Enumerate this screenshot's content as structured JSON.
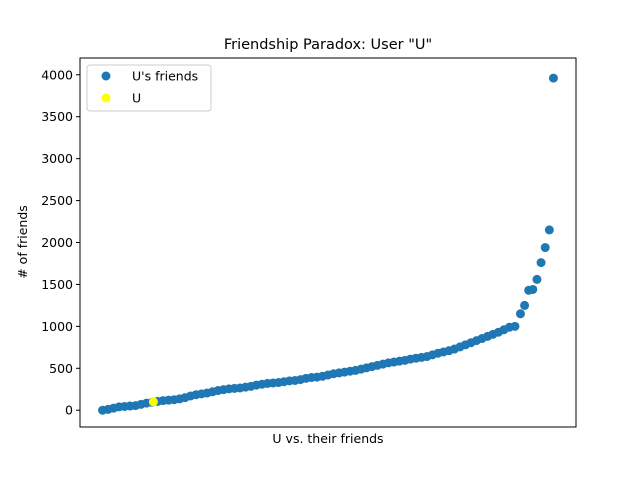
{
  "chart_data": {
    "type": "scatter",
    "title": "Friendship Paradox: User \"U\"",
    "xlabel": "U vs. their friends",
    "ylabel": "# of friends",
    "ylim": [
      -200,
      4200
    ],
    "yticks": [
      0,
      500,
      1000,
      1500,
      2000,
      2500,
      3000,
      3500,
      4000
    ],
    "xticks_visible": false,
    "grid": false,
    "legend": {
      "placement": "top-left",
      "entries": [
        {
          "label": "U's friends",
          "color": "#1f77b4"
        },
        {
          "label": "U",
          "color": "#ffff00"
        }
      ]
    },
    "series": [
      {
        "name": "U's friends",
        "color": "#1f77b4",
        "sampled_points": [
          {
            "x": 1,
            "y": 0
          },
          {
            "x": 3,
            "y": 10
          },
          {
            "x": 5,
            "y": 25
          },
          {
            "x": 7,
            "y": 40
          },
          {
            "x": 9,
            "y": 45
          },
          {
            "x": 11,
            "y": 50
          },
          {
            "x": 13,
            "y": 55
          },
          {
            "x": 15,
            "y": 70
          },
          {
            "x": 17,
            "y": 85
          },
          {
            "x": 19,
            "y": 95
          },
          {
            "x": 21,
            "y": 105
          },
          {
            "x": 23,
            "y": 115
          },
          {
            "x": 25,
            "y": 120
          },
          {
            "x": 27,
            "y": 125
          },
          {
            "x": 29,
            "y": 135
          },
          {
            "x": 31,
            "y": 150
          },
          {
            "x": 33,
            "y": 170
          },
          {
            "x": 35,
            "y": 185
          },
          {
            "x": 37,
            "y": 195
          },
          {
            "x": 39,
            "y": 205
          },
          {
            "x": 41,
            "y": 220
          },
          {
            "x": 43,
            "y": 235
          },
          {
            "x": 45,
            "y": 245
          },
          {
            "x": 47,
            "y": 255
          },
          {
            "x": 49,
            "y": 260
          },
          {
            "x": 51,
            "y": 265
          },
          {
            "x": 53,
            "y": 275
          },
          {
            "x": 55,
            "y": 285
          },
          {
            "x": 57,
            "y": 300
          },
          {
            "x": 59,
            "y": 310
          },
          {
            "x": 61,
            "y": 320
          },
          {
            "x": 63,
            "y": 325
          },
          {
            "x": 65,
            "y": 330
          },
          {
            "x": 67,
            "y": 340
          },
          {
            "x": 69,
            "y": 350
          },
          {
            "x": 71,
            "y": 355
          },
          {
            "x": 73,
            "y": 365
          },
          {
            "x": 75,
            "y": 380
          },
          {
            "x": 77,
            "y": 390
          },
          {
            "x": 79,
            "y": 395
          },
          {
            "x": 81,
            "y": 405
          },
          {
            "x": 83,
            "y": 420
          },
          {
            "x": 85,
            "y": 435
          },
          {
            "x": 87,
            "y": 445
          },
          {
            "x": 89,
            "y": 455
          },
          {
            "x": 91,
            "y": 465
          },
          {
            "x": 93,
            "y": 475
          },
          {
            "x": 95,
            "y": 490
          },
          {
            "x": 97,
            "y": 505
          },
          {
            "x": 99,
            "y": 520
          },
          {
            "x": 101,
            "y": 535
          },
          {
            "x": 103,
            "y": 550
          },
          {
            "x": 105,
            "y": 565
          },
          {
            "x": 107,
            "y": 575
          },
          {
            "x": 109,
            "y": 585
          },
          {
            "x": 111,
            "y": 595
          },
          {
            "x": 113,
            "y": 610
          },
          {
            "x": 115,
            "y": 620
          },
          {
            "x": 117,
            "y": 630
          },
          {
            "x": 119,
            "y": 640
          },
          {
            "x": 121,
            "y": 660
          },
          {
            "x": 123,
            "y": 680
          },
          {
            "x": 125,
            "y": 695
          },
          {
            "x": 127,
            "y": 710
          },
          {
            "x": 129,
            "y": 730
          },
          {
            "x": 131,
            "y": 755
          },
          {
            "x": 133,
            "y": 780
          },
          {
            "x": 135,
            "y": 805
          },
          {
            "x": 137,
            "y": 830
          },
          {
            "x": 139,
            "y": 855
          },
          {
            "x": 141,
            "y": 880
          },
          {
            "x": 143,
            "y": 905
          },
          {
            "x": 145,
            "y": 930
          },
          {
            "x": 147,
            "y": 960
          },
          {
            "x": 149,
            "y": 990
          },
          {
            "x": 151,
            "y": 1000
          },
          {
            "x": 153,
            "y": 1150
          },
          {
            "x": 154.5,
            "y": 1250
          },
          {
            "x": 156,
            "y": 1430
          },
          {
            "x": 157.5,
            "y": 1440
          },
          {
            "x": 159,
            "y": 1560
          },
          {
            "x": 160.5,
            "y": 1760
          },
          {
            "x": 162,
            "y": 1940
          },
          {
            "x": 163.5,
            "y": 2150
          },
          {
            "x": 165,
            "y": 3960
          }
        ]
      },
      {
        "name": "U",
        "color": "#ffff00",
        "points": [
          {
            "x": 19.5,
            "y": 100
          }
        ]
      }
    ]
  }
}
